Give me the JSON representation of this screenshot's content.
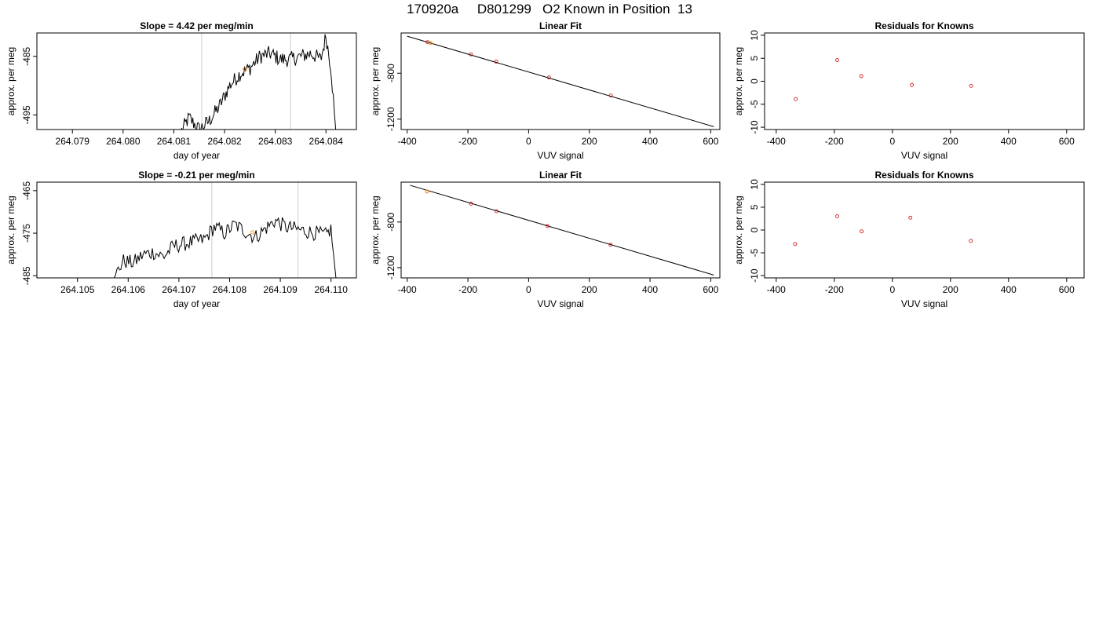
{
  "page": {
    "title": "170920a     D801299   O2 Known in Position  13"
  },
  "colors": {
    "frame": "#000000",
    "trace": "#000000",
    "marker_lines": "#cccccc",
    "fit_points": "#cc0000",
    "highlight": "#ff8c00"
  },
  "chart_data": [
    {
      "type": "line",
      "title": "Slope =  4.42  per meg/min",
      "xlabel": "day of year",
      "ylabel": "approx. per meg",
      "xlim": [
        264.0783,
        264.0846
      ],
      "ylim": [
        -497.5,
        -481.0
      ],
      "xticks": [
        264.079,
        264.08,
        264.081,
        264.082,
        264.083,
        264.084
      ],
      "xtick_labels": [
        "264.079",
        "264.080",
        "264.081",
        "264.082",
        "264.083",
        "264.084"
      ],
      "yticks": [
        -485,
        -495
      ],
      "ytick_labels": [
        "-485",
        "-495"
      ],
      "vlines": [
        264.08155,
        264.0833
      ],
      "highlight_point": [
        264.0824,
        -487.2
      ],
      "trace_start": 264.0811,
      "trace_end": 264.0842,
      "trace_keys": [
        [
          264.0811,
          -498.5
        ],
        [
          264.0813,
          -495.5
        ],
        [
          264.0815,
          -497.5
        ],
        [
          264.0817,
          -496.0
        ],
        [
          264.0819,
          -493.5
        ],
        [
          264.0821,
          -490.0
        ],
        [
          264.0823,
          -488.0
        ],
        [
          264.0825,
          -487.0
        ],
        [
          264.0827,
          -485.0
        ],
        [
          264.0829,
          -484.5
        ],
        [
          264.0831,
          -485.5
        ],
        [
          264.0833,
          -485.5
        ],
        [
          264.0835,
          -485.0
        ],
        [
          264.0837,
          -484.5
        ],
        [
          264.0839,
          -485.5
        ],
        [
          264.084,
          -481.5
        ],
        [
          264.0841,
          -487.0
        ],
        [
          264.0842,
          -498.5
        ]
      ]
    },
    {
      "type": "line",
      "title": "Linear Fit",
      "xlabel": "VUV signal",
      "ylabel": "approx. per meg",
      "xlim": [
        -420,
        630
      ],
      "ylim": [
        -1290,
        -450
      ],
      "xticks": [
        -400,
        -200,
        0,
        200,
        400,
        600
      ],
      "xtick_labels": [
        "-400",
        "-200",
        "0",
        "200",
        "400",
        "600"
      ],
      "yticks": [
        -800,
        -1200
      ],
      "ytick_labels": [
        "-800",
        "-1200"
      ],
      "fit_line": [
        [
          -400,
          -478
        ],
        [
          610,
          -1265
        ]
      ],
      "points": [
        [
          -333,
          -530
        ],
        [
          -190,
          -636
        ],
        [
          -107,
          -699
        ],
        [
          67,
          -837
        ],
        [
          271,
          -994
        ]
      ],
      "highlight_point": [
        -323,
        -538
      ]
    },
    {
      "type": "scatter",
      "title": "Residuals for Knowns",
      "xlabel": "VUV signal",
      "ylabel": "approx. per meg",
      "xlim": [
        -440,
        660
      ],
      "ylim": [
        -10.5,
        10.5
      ],
      "xticks": [
        -400,
        -200,
        0,
        200,
        400,
        600
      ],
      "xtick_labels": [
        "-400",
        "-200",
        "0",
        "200",
        "400",
        "600"
      ],
      "yticks": [
        10,
        5,
        0,
        -5,
        -10
      ],
      "ytick_labels": [
        "10",
        "5",
        "0",
        "-5",
        "-10"
      ],
      "points": [
        [
          -333,
          -3.9
        ],
        [
          -190,
          4.6
        ],
        [
          -107,
          1.1
        ],
        [
          67,
          -0.8
        ],
        [
          271,
          -1.0
        ]
      ]
    },
    {
      "type": "line",
      "title": "Slope =  -0.21  per meg/min",
      "xlabel": "day of year",
      "ylabel": "approx. per meg",
      "xlim": [
        264.1042,
        264.1105
      ],
      "ylim": [
        -485.5,
        -463.0
      ],
      "xticks": [
        264.105,
        264.106,
        264.107,
        264.108,
        264.109,
        264.11
      ],
      "xtick_labels": [
        "264.105",
        "264.106",
        "264.107",
        "264.108",
        "264.109",
        "264.110"
      ],
      "yticks": [
        -465,
        -475,
        -485
      ],
      "ytick_labels": [
        "-465",
        "-475",
        "-485"
      ],
      "vlines": [
        264.10765,
        264.10935
      ],
      "highlight_point": [
        264.10845,
        -474.8
      ],
      "trace_start": 264.1057,
      "trace_end": 264.1101,
      "trace_keys": [
        [
          264.1057,
          -486.0
        ],
        [
          264.1059,
          -481.5
        ],
        [
          264.1061,
          -482.0
        ],
        [
          264.1063,
          -480.0
        ],
        [
          264.1065,
          -479.5
        ],
        [
          264.1067,
          -480.5
        ],
        [
          264.1069,
          -478.0
        ],
        [
          264.1071,
          -477.5
        ],
        [
          264.1073,
          -477.0
        ],
        [
          264.1075,
          -476.5
        ],
        [
          264.1077,
          -473.5
        ],
        [
          264.1079,
          -475.0
        ],
        [
          264.1081,
          -473.0
        ],
        [
          264.1083,
          -474.5
        ],
        [
          264.1085,
          -476.0
        ],
        [
          264.1087,
          -474.0
        ],
        [
          264.1089,
          -472.0
        ],
        [
          264.1091,
          -473.5
        ],
        [
          264.1093,
          -474.0
        ],
        [
          264.1095,
          -474.5
        ],
        [
          264.1097,
          -475.0
        ],
        [
          264.1099,
          -475.5
        ],
        [
          264.11,
          -474.0
        ],
        [
          264.1101,
          -486.0
        ]
      ]
    },
    {
      "type": "line",
      "title": "Linear Fit",
      "xlabel": "VUV signal",
      "ylabel": "approx. per meg",
      "xlim": [
        -420,
        630
      ],
      "ylim": [
        -1290,
        -450
      ],
      "xticks": [
        -400,
        -200,
        0,
        200,
        400,
        600
      ],
      "xtick_labels": [
        "-400",
        "-200",
        "0",
        "200",
        "400",
        "600"
      ],
      "yticks": [
        -800,
        -1200
      ],
      "ytick_labels": [
        "-800",
        "-1200"
      ],
      "fit_line": [
        [
          -390,
          -478
        ],
        [
          610,
          -1265
        ]
      ],
      "points": [
        [
          -335,
          -532
        ],
        [
          -190,
          -639
        ],
        [
          -106,
          -705
        ],
        [
          62,
          -836
        ],
        [
          270,
          -1000
        ]
      ],
      "highlight_point": [
        -335,
        -532
      ]
    },
    {
      "type": "scatter",
      "title": "Residuals for Knowns",
      "xlabel": "VUV signal",
      "ylabel": "approx. per meg",
      "xlim": [
        -440,
        660
      ],
      "ylim": [
        -10.5,
        10.5
      ],
      "xticks": [
        -400,
        -200,
        0,
        200,
        400,
        600
      ],
      "xtick_labels": [
        "-400",
        "-200",
        "0",
        "200",
        "400",
        "600"
      ],
      "yticks": [
        10,
        5,
        0,
        -5,
        -10
      ],
      "ytick_labels": [
        "10",
        "5",
        "0",
        "-5",
        "-10"
      ],
      "points": [
        [
          -335,
          -3.1
        ],
        [
          -190,
          3.0
        ],
        [
          -106,
          -0.3
        ],
        [
          62,
          2.7
        ],
        [
          270,
          -2.4
        ]
      ]
    }
  ]
}
